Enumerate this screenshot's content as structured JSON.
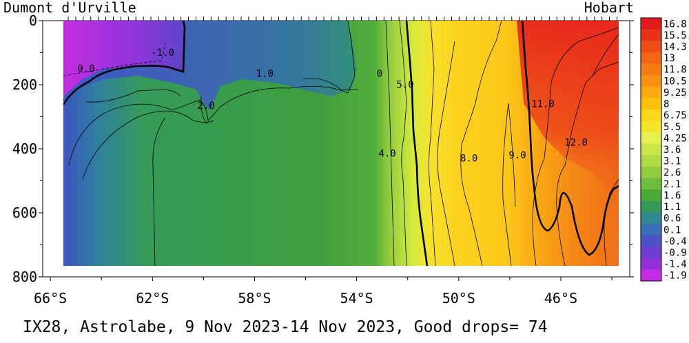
{
  "chart_data": {
    "type": "heatmap",
    "title_left": "Dumont d'Urville",
    "title_right": "Hobart",
    "caption": "IX28, Astrolabe,  9 Nov 2023-14 Nov 2023, Good drops= 74",
    "x_ticks": [
      "66°S",
      "62°S",
      "58°S",
      "54°S",
      "50°S",
      "46°S"
    ],
    "x_tick_values": [
      -66,
      -62,
      -58,
      -54,
      -50,
      -46
    ],
    "y_ticks": [
      "0",
      "200",
      "400",
      "600",
      "800"
    ],
    "y_tick_values": [
      0,
      200,
      400,
      600,
      800
    ],
    "xlim": [
      -66.3,
      -43.3
    ],
    "ylim": [
      800,
      0
    ],
    "data_x_range": [
      -65.3,
      -43.8
    ],
    "data_y_max": 770,
    "colorbar_labels": [
      "16.8",
      "15.5",
      "14.3",
      "13",
      "11.8",
      "10.5",
      "9.25",
      "8",
      "6.75",
      "5.5",
      "4.25",
      "3.6",
      "3.1",
      "2.6",
      "2.1",
      "1.6",
      "1.1",
      "0.6",
      "0.1",
      "-0.4",
      "-0.9",
      "-1.4",
      "-1.9"
    ],
    "colorbar_colors": [
      "#e31a1c",
      "#e8331a",
      "#ee4d18",
      "#f26516",
      "#f57c14",
      "#f89212",
      "#fbaa10",
      "#fdc00f",
      "#fed51f",
      "#f4e52a",
      "#e7f052",
      "#cde649",
      "#b1da44",
      "#90cb40",
      "#6ebd3d",
      "#4ba93a",
      "#37975a",
      "#2f878f",
      "#3a6fb8",
      "#4a52c5",
      "#6d3fd0",
      "#9330da",
      "#c42ce4"
    ],
    "contour_labels": [
      {
        "text": "-1.0",
        "lat": -61.6,
        "depth": 110
      },
      {
        "text": "0.0",
        "lat": -64.6,
        "depth": 160
      },
      {
        "text": "1.0",
        "lat": -57.6,
        "depth": 175
      },
      {
        "text": "2.0",
        "lat": -59.9,
        "depth": 275
      },
      {
        "text": "0",
        "lat": -53.1,
        "depth": 175
      },
      {
        "text": "5.0",
        "lat": -52.1,
        "depth": 210
      },
      {
        "text": "4.0",
        "lat": -52.8,
        "depth": 425
      },
      {
        "text": "8.0",
        "lat": -49.6,
        "depth": 440
      },
      {
        "text": "9.0",
        "lat": -47.7,
        "depth": 430
      },
      {
        "text": "11.0",
        "lat": -46.7,
        "depth": 270
      },
      {
        "text": "12.0",
        "lat": -45.4,
        "depth": 390
      }
    ]
  }
}
